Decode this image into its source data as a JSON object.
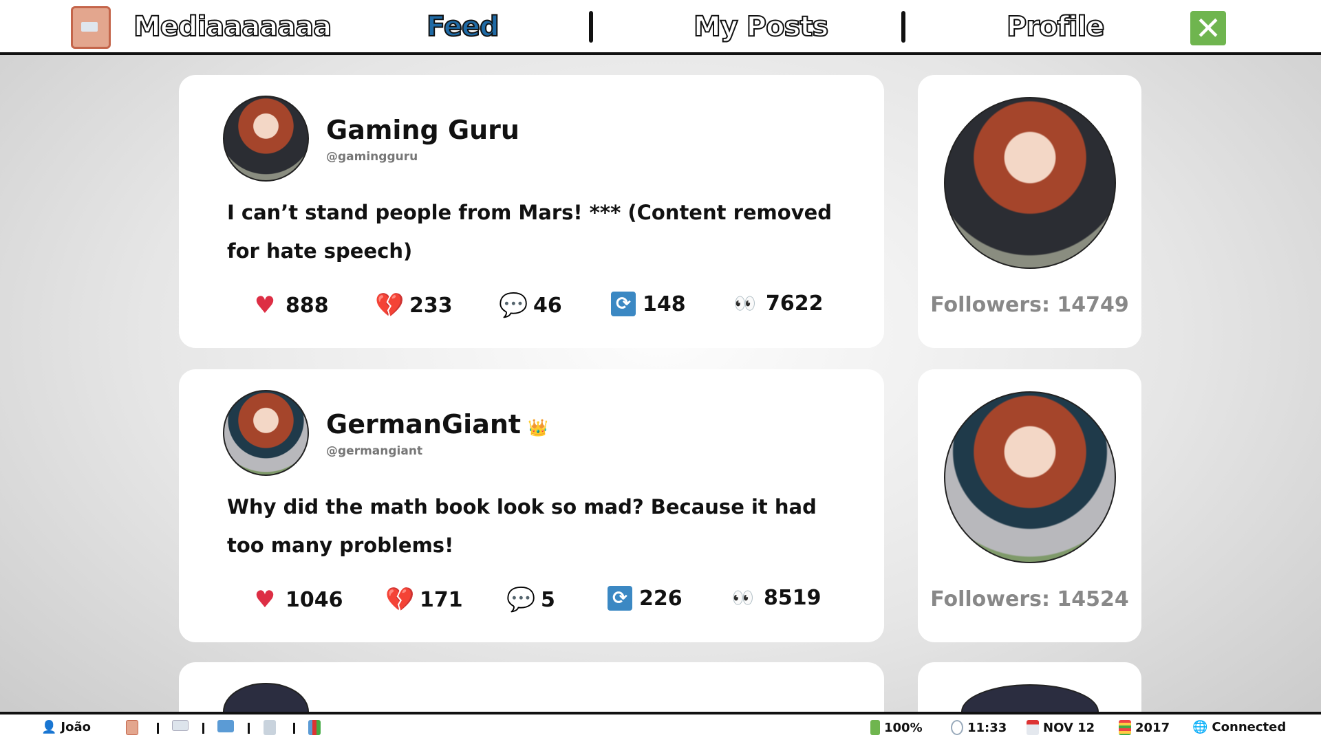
{
  "header": {
    "app_title": "Mediaaaaaaa",
    "nav": [
      "Feed",
      "My Posts",
      "Profile"
    ],
    "active": "Feed",
    "close_icon": "close-icon"
  },
  "posts": [
    {
      "name": "Gaming Guru",
      "handle": "@gamingguru",
      "verified": false,
      "text": "I can’t stand people from Mars! *** (Content removed for hate speech)",
      "likes": "888",
      "dislikes": "233",
      "comments": "46",
      "reposts": "148",
      "views": "7622",
      "followers": "Followers: 14749"
    },
    {
      "name": "GermanGiant",
      "handle": "@germangiant",
      "verified": true,
      "text": "Why did the math book look so mad? Because it had too many problems!",
      "likes": "1046",
      "dislikes": "171",
      "comments": "5",
      "reposts": "226",
      "views": "8519",
      "followers": "Followers: 14524"
    }
  ],
  "icons": {
    "like": "♥",
    "dislike": "💔",
    "comment": "💬",
    "repost": "⟳",
    "views": "👀",
    "crown": "👑"
  },
  "taskbar": {
    "user": "João",
    "battery": "100%",
    "time": "11:33",
    "date": "NOV 12",
    "year": "2017",
    "network": "Connected"
  },
  "colors": {
    "accent": "#1f6aa5",
    "like": "#dd2e44",
    "repost": "#3b88c3",
    "close": "#6fb54f"
  }
}
